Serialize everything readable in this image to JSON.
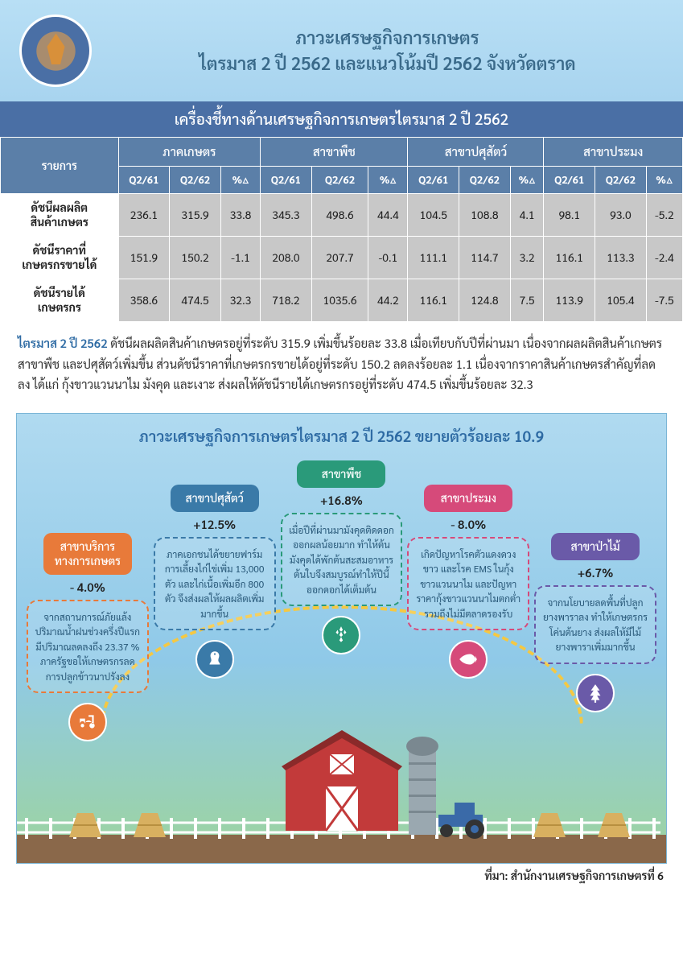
{
  "header": {
    "title1": "ภาวะเศรษฐกิจการเกษตร",
    "title2": "ไตรมาส 2 ปี 2562 และแนวโน้มปี 2562 จังหวัดตราด"
  },
  "section_title": "เครื่องชี้ทางด้านเศรษฐกิจการเกษตรไตรมาส 2 ปี 2562",
  "table": {
    "row_header": "รายการ",
    "groups": [
      "ภาคเกษตร",
      "สาขาพืช",
      "สาขาปศุสัตว์",
      "สาขาประมง"
    ],
    "sub_headers": [
      "Q2/61",
      "Q2/62",
      "%△"
    ],
    "rows": [
      {
        "label": "ดัชนีผลผลิต\nสินค้าเกษตร",
        "cells": [
          "236.1",
          "315.9",
          "33.8",
          "345.3",
          "498.6",
          "44.4",
          "104.5",
          "108.8",
          "4.1",
          "98.1",
          "93.0",
          "-5.2"
        ]
      },
      {
        "label": "ดัชนีราคาที่\nเกษตรกรขายได้",
        "cells": [
          "151.9",
          "150.2",
          "-1.1",
          "208.0",
          "207.7",
          "-0.1",
          "111.1",
          "114.7",
          "3.2",
          "116.1",
          "113.3",
          "-2.4"
        ]
      },
      {
        "label": "ดัชนีรายได้\nเกษตรกร",
        "cells": [
          "358.6",
          "474.5",
          "32.3",
          "718.2",
          "1035.6",
          "44.2",
          "116.1",
          "124.8",
          "7.5",
          "113.9",
          "105.4",
          "-7.5"
        ]
      }
    ]
  },
  "paragraph": {
    "lead": "ไตรมาส 2 ปี 2562",
    "body": " ดัชนีผลผลิตสินค้าเกษตรอยู่ที่ระดับ 315.9 เพิ่มขึ้นร้อยละ 33.8 เมื่อเทียบกับปีที่ผ่านมา เนื่องจากผลผลิตสินค้าเกษตรสาขาพืช และปศุสัตว์เพิ่มขึ้น ส่วนดัชนีราคาที่เกษตรกรขายได้อยู่ที่ระดับ 150.2 ลดลงร้อยละ 1.1 เนื่องจากราคาสินค้าเกษตรสำคัญที่ลดลง ได้แก่ กุ้งขาวแวนนาไม มังคุด และเงาะ ส่งผลให้ดัชนีรายได้เกษตรกรอยู่ที่ระดับ 474.5 เพิ่มขึ้นร้อยละ 32.3"
  },
  "infographic": {
    "title": "ภาวะเศรษฐกิจการเกษตรไตรมาส 2 ปี 2562 ขยายตัวร้อยละ 10.9",
    "sectors": [
      {
        "name": "สาขาบริการ\nทางการเกษตร",
        "pct": "- 4.0%",
        "color": "#e87a3a",
        "desc": "จากสถานการณ์ภัยแล้ง ปริมาณน้ำฝนช่วงครึ่งปีแรกมีปริมาณลดลงถึง 23.37 % ภาครัฐขอให้เกษตรกรลดการปลูกข้าวนาปรังลง",
        "icon": "tractor"
      },
      {
        "name": "สาขาปศุสัตว์",
        "pct": "+12.5%",
        "color": "#3a7aa8",
        "desc": "ภาคเอกชนได้ขยายฟาร์มการเลี้ยงไก่ไข่เพิ่ม 13,000 ตัว และไก่เนื้อเพิ่มอีก 800 ตัว จึงส่งผลให้ผลผลิตเพิ่มมากขึ้น",
        "icon": "chicken"
      },
      {
        "name": "สาขาพืช",
        "pct": "+16.8%",
        "color": "#2a9a7a",
        "desc": "เมื่อปีที่ผ่านมามังคุดติดดอกออกผลน้อยมาก ทำให้ต้นมังคุดได้พักต้นสะสมอาหาร ต้นใบจึงสมบูรณ์ทำให้ปีนี้ออกดอกได้เต็มต้น",
        "icon": "wheat"
      },
      {
        "name": "สาขาประมง",
        "pct": "- 8.0%",
        "color": "#d64a7a",
        "desc": "เกิดปัญหาโรคตัวแดงดวงขาว และโรค EMS ในกุ้งขาวแวนนาไม และปัญหาราคากุ้งขาวแวนนาไมตกต่ำรวมถึงไม่มีตลาดรองรับ",
        "icon": "fish"
      },
      {
        "name": "สาขาป่าไม้",
        "pct": "+6.7%",
        "color": "#6a5aa8",
        "desc": "จากนโยบายลดพื้นที่ปลูกยางพาราลง ทำให้เกษตรกรโค่นต้นยาง ส่งผลให้มีไม้ยางพาราเพิ่มมากขึ้น",
        "icon": "tree"
      }
    ]
  },
  "source": "ที่มา: สำนักงานเศรษฐกิจการเกษตรที่ 6",
  "colors": {
    "header_bg": "#b8dff5",
    "bar_bg": "#4a6fa5",
    "table_header": "#5b7fa8",
    "table_cell": "#c8c8c8",
    "info_bg_top": "#b0daf0",
    "info_bg_bottom": "#9dd49d"
  }
}
